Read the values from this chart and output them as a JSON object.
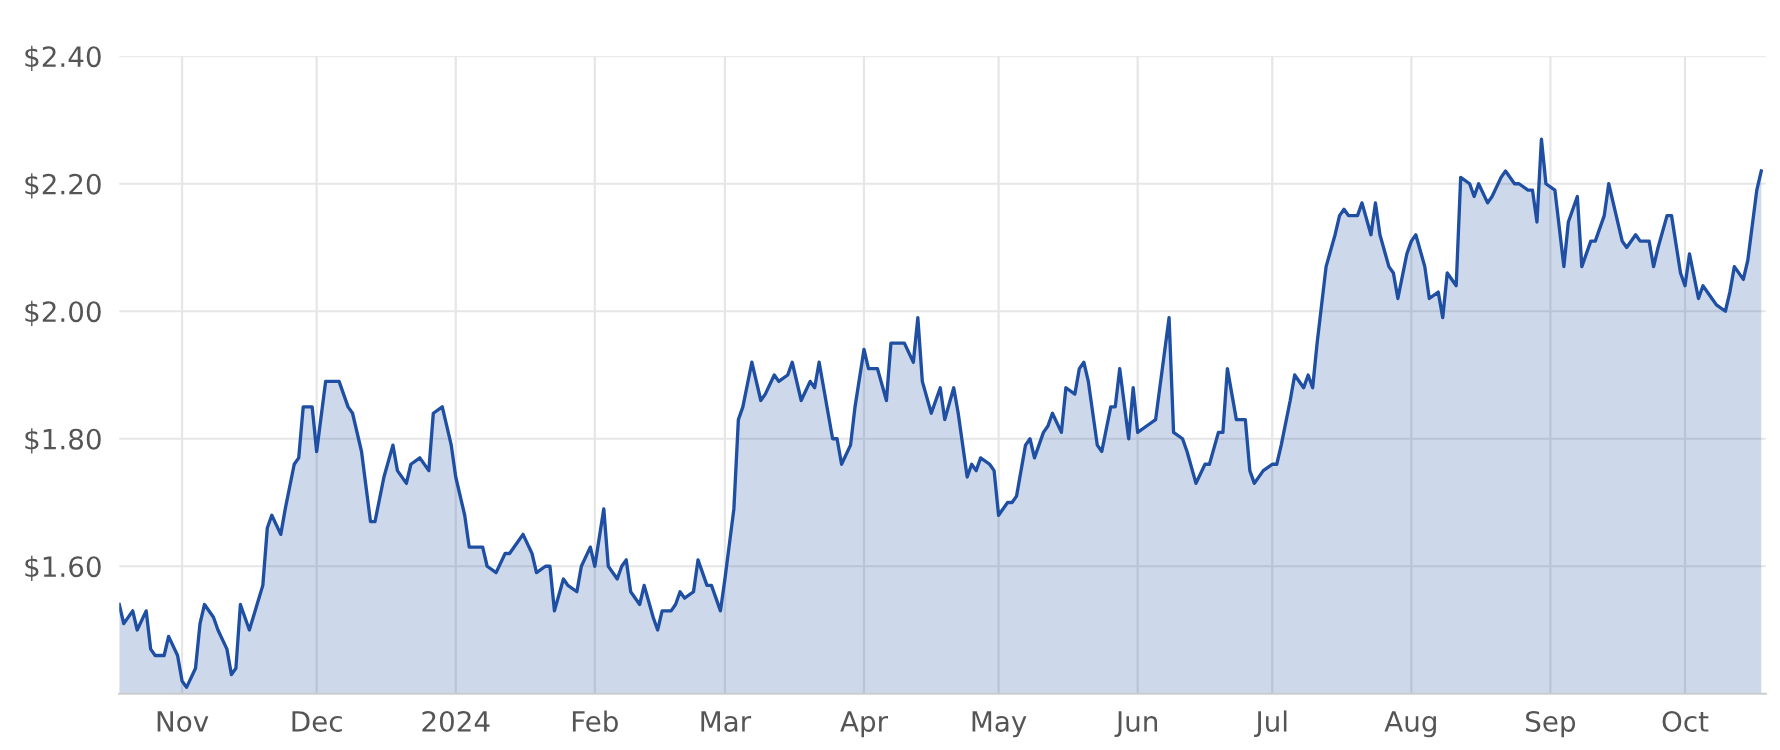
{
  "chart_data": {
    "type": "area",
    "x": [
      "2023-10-18",
      "2023-10-19",
      "2023-10-21",
      "2023-10-22",
      "2023-10-24",
      "2023-10-25",
      "2023-10-26",
      "2023-10-28",
      "2023-10-29",
      "2023-10-31",
      "2023-11-01",
      "2023-11-02",
      "2023-11-04",
      "2023-11-05",
      "2023-11-06",
      "2023-11-08",
      "2023-11-09",
      "2023-11-11",
      "2023-11-12",
      "2023-11-13",
      "2023-11-14",
      "2023-11-16",
      "2023-11-19",
      "2023-11-20",
      "2023-11-21",
      "2023-11-23",
      "2023-11-24",
      "2023-11-26",
      "2023-11-27",
      "2023-11-28",
      "2023-11-30",
      "2023-12-01",
      "2023-12-03",
      "2023-12-06",
      "2023-12-08",
      "2023-12-09",
      "2023-12-11",
      "2023-12-13",
      "2023-12-14",
      "2023-12-16",
      "2023-12-18",
      "2023-12-19",
      "2023-12-21",
      "2023-12-22",
      "2023-12-24",
      "2023-12-26",
      "2023-12-27",
      "2023-12-29",
      "2023-12-31",
      "2024-01-01",
      "2024-01-03",
      "2024-01-04",
      "2024-01-07",
      "2024-01-08",
      "2024-01-10",
      "2024-01-12",
      "2024-01-13",
      "2024-01-15",
      "2024-01-16",
      "2024-01-18",
      "2024-01-19",
      "2024-01-21",
      "2024-01-22",
      "2024-01-23",
      "2024-01-25",
      "2024-01-26",
      "2024-01-28",
      "2024-01-29",
      "2024-01-31",
      "2024-02-01",
      "2024-02-03",
      "2024-02-04",
      "2024-02-06",
      "2024-02-07",
      "2024-02-08",
      "2024-02-09",
      "2024-02-11",
      "2024-02-12",
      "2024-02-14",
      "2024-02-15",
      "2024-02-16",
      "2024-02-18",
      "2024-02-19",
      "2024-02-20",
      "2024-02-21",
      "2024-02-23",
      "2024-02-24",
      "2024-02-26",
      "2024-02-27",
      "2024-02-29",
      "2024-03-01",
      "2024-03-03",
      "2024-03-04",
      "2024-03-05",
      "2024-03-07",
      "2024-03-09",
      "2024-03-10",
      "2024-03-12",
      "2024-03-13",
      "2024-03-15",
      "2024-03-16",
      "2024-03-18",
      "2024-03-20",
      "2024-03-21",
      "2024-03-22",
      "2024-03-25",
      "2024-03-26",
      "2024-03-27",
      "2024-03-29",
      "2024-03-30",
      "2024-04-01",
      "2024-04-02",
      "2024-04-04",
      "2024-04-06",
      "2024-04-07",
      "2024-04-09",
      "2024-04-10",
      "2024-04-12",
      "2024-04-13",
      "2024-04-14",
      "2024-04-16",
      "2024-04-18",
      "2024-04-19",
      "2024-04-21",
      "2024-04-22",
      "2024-04-24",
      "2024-04-25",
      "2024-04-26",
      "2024-04-27",
      "2024-04-29",
      "2024-04-30",
      "2024-05-01",
      "2024-05-03",
      "2024-05-04",
      "2024-05-05",
      "2024-05-07",
      "2024-05-08",
      "2024-05-09",
      "2024-05-11",
      "2024-05-12",
      "2024-05-13",
      "2024-05-15",
      "2024-05-16",
      "2024-05-18",
      "2024-05-19",
      "2024-05-20",
      "2024-05-21",
      "2024-05-23",
      "2024-05-24",
      "2024-05-26",
      "2024-05-27",
      "2024-05-28",
      "2024-05-30",
      "2024-05-31",
      "2024-06-01",
      "2024-06-03",
      "2024-06-05",
      "2024-06-08",
      "2024-06-09",
      "2024-06-11",
      "2024-06-12",
      "2024-06-14",
      "2024-06-16",
      "2024-06-17",
      "2024-06-19",
      "2024-06-20",
      "2024-06-21",
      "2024-06-23",
      "2024-06-25",
      "2024-06-26",
      "2024-06-27",
      "2024-06-29",
      "2024-07-01",
      "2024-07-02",
      "2024-07-03",
      "2024-07-05",
      "2024-07-06",
      "2024-07-08",
      "2024-07-09",
      "2024-07-10",
      "2024-07-11",
      "2024-07-13",
      "2024-07-15",
      "2024-07-16",
      "2024-07-17",
      "2024-07-18",
      "2024-07-20",
      "2024-07-21",
      "2024-07-23",
      "2024-07-24",
      "2024-07-25",
      "2024-07-27",
      "2024-07-28",
      "2024-07-29",
      "2024-07-31",
      "2024-08-01",
      "2024-08-02",
      "2024-08-04",
      "2024-08-05",
      "2024-08-07",
      "2024-08-08",
      "2024-08-09",
      "2024-08-11",
      "2024-08-12",
      "2024-08-14",
      "2024-08-15",
      "2024-08-16",
      "2024-08-18",
      "2024-08-19",
      "2024-08-21",
      "2024-08-22",
      "2024-08-24",
      "2024-08-25",
      "2024-08-27",
      "2024-08-28",
      "2024-08-29",
      "2024-08-30",
      "2024-08-31",
      "2024-09-02",
      "2024-09-04",
      "2024-09-05",
      "2024-09-07",
      "2024-09-08",
      "2024-09-10",
      "2024-09-11",
      "2024-09-13",
      "2024-09-14",
      "2024-09-15",
      "2024-09-17",
      "2024-09-18",
      "2024-09-20",
      "2024-09-21",
      "2024-09-23",
      "2024-09-24",
      "2024-09-25",
      "2024-09-27",
      "2024-09-28",
      "2024-09-30",
      "2024-10-01",
      "2024-10-02",
      "2024-10-04",
      "2024-10-05",
      "2024-10-07",
      "2024-10-08",
      "2024-10-10",
      "2024-10-11",
      "2024-10-12",
      "2024-10-14",
      "2024-10-15",
      "2024-10-17",
      "2024-10-18"
    ],
    "series": [
      {
        "color": "#1f4fa3",
        "values": [
          1.54,
          1.51,
          1.53,
          1.5,
          1.53,
          1.47,
          1.46,
          1.46,
          1.49,
          1.46,
          1.42,
          1.41,
          1.44,
          1.51,
          1.54,
          1.52,
          1.5,
          1.47,
          1.43,
          1.44,
          1.54,
          1.5,
          1.57,
          1.66,
          1.68,
          1.65,
          1.69,
          1.76,
          1.77,
          1.85,
          1.85,
          1.78,
          1.89,
          1.89,
          1.85,
          1.84,
          1.78,
          1.67,
          1.67,
          1.74,
          1.79,
          1.75,
          1.73,
          1.76,
          1.77,
          1.75,
          1.84,
          1.85,
          1.79,
          1.74,
          1.68,
          1.63,
          1.63,
          1.6,
          1.59,
          1.62,
          1.62,
          1.64,
          1.65,
          1.62,
          1.59,
          1.6,
          1.6,
          1.53,
          1.58,
          1.57,
          1.56,
          1.6,
          1.63,
          1.6,
          1.69,
          1.6,
          1.58,
          1.6,
          1.61,
          1.56,
          1.54,
          1.57,
          1.52,
          1.5,
          1.53,
          1.53,
          1.54,
          1.56,
          1.55,
          1.56,
          1.61,
          1.57,
          1.57,
          1.53,
          1.58,
          1.69,
          1.83,
          1.85,
          1.92,
          1.86,
          1.87,
          1.9,
          1.89,
          1.9,
          1.92,
          1.86,
          1.89,
          1.88,
          1.92,
          1.8,
          1.8,
          1.76,
          1.79,
          1.85,
          1.94,
          1.91,
          1.91,
          1.86,
          1.95,
          1.95,
          1.95,
          1.92,
          1.99,
          1.89,
          1.84,
          1.88,
          1.83,
          1.88,
          1.84,
          1.74,
          1.76,
          1.75,
          1.77,
          1.76,
          1.75,
          1.68,
          1.7,
          1.7,
          1.71,
          1.79,
          1.8,
          1.77,
          1.81,
          1.82,
          1.84,
          1.81,
          1.88,
          1.87,
          1.91,
          1.92,
          1.89,
          1.79,
          1.78,
          1.85,
          1.85,
          1.91,
          1.8,
          1.88,
          1.81,
          1.82,
          1.83,
          1.99,
          1.81,
          1.8,
          1.78,
          1.73,
          1.76,
          1.76,
          1.81,
          1.81,
          1.91,
          1.83,
          1.83,
          1.75,
          1.73,
          1.75,
          1.76,
          1.76,
          1.79,
          1.86,
          1.9,
          1.88,
          1.9,
          1.88,
          1.95,
          2.07,
          2.12,
          2.15,
          2.16,
          2.15,
          2.15,
          2.17,
          2.12,
          2.17,
          2.12,
          2.07,
          2.06,
          2.02,
          2.09,
          2.11,
          2.12,
          2.07,
          2.02,
          2.03,
          1.99,
          2.06,
          2.04,
          2.21,
          2.2,
          2.18,
          2.2,
          2.17,
          2.18,
          2.21,
          2.22,
          2.2,
          2.2,
          2.19,
          2.19,
          2.14,
          2.27,
          2.2,
          2.19,
          2.07,
          2.14,
          2.18,
          2.07,
          2.11,
          2.11,
          2.15,
          2.2,
          2.17,
          2.11,
          2.1,
          2.12,
          2.11,
          2.11,
          2.07,
          2.1,
          2.15,
          2.15,
          2.06,
          2.04,
          2.09,
          2.02,
          2.04,
          2.02,
          2.01,
          2.0,
          2.03,
          2.07,
          2.05,
          2.08,
          2.19,
          2.22
        ]
      }
    ],
    "xlim": [
      "2023-10-18",
      "2024-10-19"
    ],
    "xticks": [
      {
        "value": "2023-11-01",
        "label": "Nov"
      },
      {
        "value": "2023-12-01",
        "label": "Dec"
      },
      {
        "value": "2024-01-01",
        "label": "2024"
      },
      {
        "value": "2024-02-01",
        "label": "Feb"
      },
      {
        "value": "2024-03-01",
        "label": "Mar"
      },
      {
        "value": "2024-04-01",
        "label": "Apr"
      },
      {
        "value": "2024-05-01",
        "label": "May"
      },
      {
        "value": "2024-06-01",
        "label": "Jun"
      },
      {
        "value": "2024-07-01",
        "label": "Jul"
      },
      {
        "value": "2024-08-01",
        "label": "Aug"
      },
      {
        "value": "2024-09-01",
        "label": "Sep"
      },
      {
        "value": "2024-10-01",
        "label": "Oct"
      }
    ],
    "ylim": [
      1.4,
      2.4
    ],
    "yticks": [
      {
        "value": 1.6,
        "label": "$1.60"
      },
      {
        "value": 1.8,
        "label": "$1.80"
      },
      {
        "value": 2.0,
        "label": "$2.00"
      },
      {
        "value": 2.2,
        "label": "$2.20"
      },
      {
        "value": 2.4,
        "label": "$2.40"
      }
    ],
    "grid": true,
    "legend": false
  }
}
